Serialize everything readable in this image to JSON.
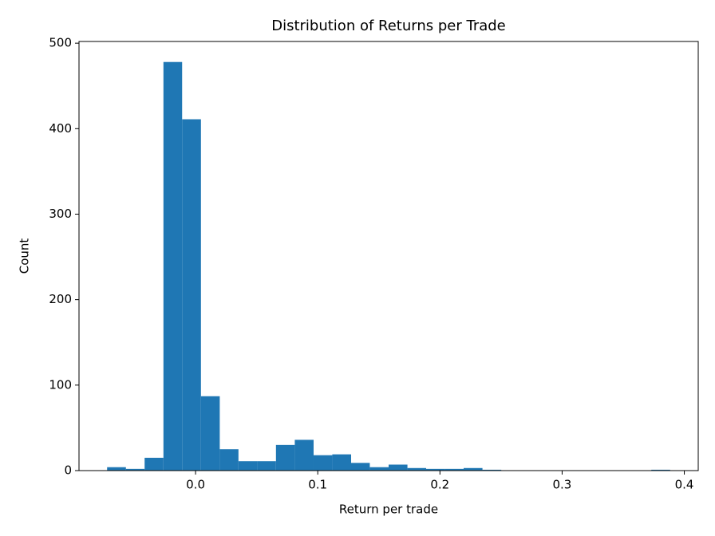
{
  "chart_data": {
    "type": "histogram",
    "title": "Distribution of Returns per Trade",
    "x_label": "Return per trade",
    "y_label": "Count",
    "bins": [
      -0.0724,
      -0.057,
      -0.0417,
      -0.0263,
      -0.011,
      0.0044,
      0.0198,
      0.0351,
      0.0505,
      0.0658,
      0.0812,
      0.0966,
      0.1119,
      0.1273,
      0.1426,
      0.158,
      0.1734,
      0.1887,
      0.2041,
      0.2194,
      0.2348,
      0.2502,
      0.2655,
      0.2809,
      0.2962,
      0.3116,
      0.327,
      0.3423,
      0.3577,
      0.373,
      0.3884
    ],
    "values": [
      4,
      2,
      15,
      478,
      411,
      87,
      25,
      11,
      11,
      30,
      36,
      18,
      19,
      9,
      4,
      7,
      3,
      2,
      2,
      3,
      1,
      0,
      0,
      0,
      0,
      0,
      0,
      0,
      0,
      1
    ],
    "color": "#1f77b4",
    "xlim": [
      -0.0954,
      0.4114
    ],
    "ylim": [
      0,
      502
    ],
    "xticks": [
      {
        "value": 0,
        "label": "0.0"
      },
      0.1,
      0.2,
      0.3,
      0.4
    ],
    "yticks": [
      0,
      100,
      200,
      300,
      400,
      500
    ],
    "grid": false
  }
}
